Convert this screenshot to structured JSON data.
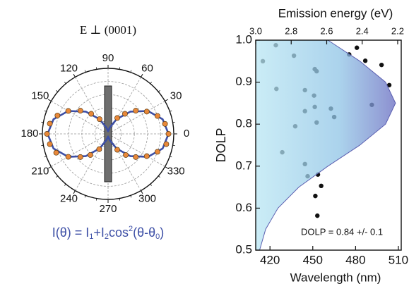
{
  "chart_data": [
    {
      "type": "polar",
      "title": "E ⊥ (0001)",
      "formula": [
        "I(θ) = I",
        "1",
        "+I",
        "2",
        "cos",
        "2",
        "(θ-θ",
        "0",
        ")"
      ],
      "rlim": [
        0,
        1
      ],
      "rticks": [
        0.2,
        0.4,
        0.6,
        0.8,
        1
      ],
      "thetaticks": [
        0,
        30,
        60,
        90,
        120,
        150,
        180,
        210,
        240,
        270,
        300,
        330
      ],
      "points": {
        "color": "#e8883a",
        "theta": [
          0,
          10,
          20,
          30,
          40,
          50,
          60,
          120,
          130,
          140,
          150,
          160,
          170,
          180,
          190,
          200,
          210,
          220,
          230,
          240,
          300,
          310,
          320,
          330,
          340,
          350
        ],
        "r": [
          0.92,
          0.88,
          0.8,
          0.68,
          0.55,
          0.4,
          0.28,
          0.26,
          0.4,
          0.55,
          0.7,
          0.82,
          0.9,
          0.93,
          0.9,
          0.84,
          0.7,
          0.55,
          0.42,
          0.27,
          0.28,
          0.42,
          0.55,
          0.68,
          0.8,
          0.9
        ]
      },
      "fit": {
        "color": "#3d4fa6",
        "theta": [
          0,
          15,
          30,
          45,
          60,
          75,
          90,
          105,
          120,
          135,
          150,
          165,
          180,
          195,
          210,
          225,
          240,
          255,
          270,
          285,
          300,
          315,
          330,
          345,
          360
        ],
        "r": [
          0.92,
          0.861,
          0.7,
          0.48,
          0.26,
          0.099,
          0.04,
          0.099,
          0.26,
          0.48,
          0.7,
          0.861,
          0.92,
          0.861,
          0.7,
          0.48,
          0.26,
          0.099,
          0.04,
          0.099,
          0.26,
          0.48,
          0.7,
          0.861,
          0.92
        ]
      }
    },
    {
      "type": "scatter",
      "x2label": "Emission energy (eV)",
      "xlabel": "Wavelength (nm)",
      "ylabel": "DOLP",
      "annotation": "DOLP = 0.84 +/- 0.1",
      "color": "#111111",
      "x": [
        415.0,
        424.1,
        424.5,
        428.6,
        436.8,
        437.7,
        444.5,
        444.5,
        444.5,
        446.4,
        451.4,
        452.7,
        450.9,
        451.4,
        452.7,
        453.6,
        455.9,
        451.8,
        453.2,
        462.7,
        465.0,
        475.5,
        480.9,
        486.8,
        498.2,
        503.6,
        491.4
      ],
      "y": [
        0.95,
        0.988,
        0.884,
        0.733,
        0.963,
        0.795,
        0.881,
        0.831,
        0.705,
        0.676,
        0.931,
        0.926,
        0.868,
        0.841,
        0.804,
        0.68,
        0.653,
        0.629,
        0.582,
        0.837,
        0.817,
        0.966,
        0.982,
        0.951,
        0.941,
        0.893,
        0.846
      ],
      "envelope": {
        "color": "#7fa8dc",
        "y": [
          0.5,
          0.55,
          0.6,
          0.65,
          0.7,
          0.75,
          0.8,
          0.85,
          0.9,
          0.95,
          1.0
        ],
        "x": [
          412.7,
          417.0,
          425.6,
          440.2,
          460.6,
          483.0,
          501.0,
          508.0,
          501.0,
          483.0,
          460.6
        ]
      },
      "xlim": [
        410,
        512
      ],
      "xticks": [
        420,
        450,
        480,
        510
      ],
      "x2lim": [
        3.0,
        2.18
      ],
      "x2ticks": [
        {
          "value": 3,
          "label": "3.0"
        },
        2.8,
        2.6,
        2.4,
        2.2
      ],
      "ylim": [
        0.5,
        1.0
      ],
      "yticks": [
        0.5,
        0.6,
        0.7,
        0.8,
        0.9,
        {
          "value": 1,
          "label": "1.0"
        }
      ]
    }
  ]
}
